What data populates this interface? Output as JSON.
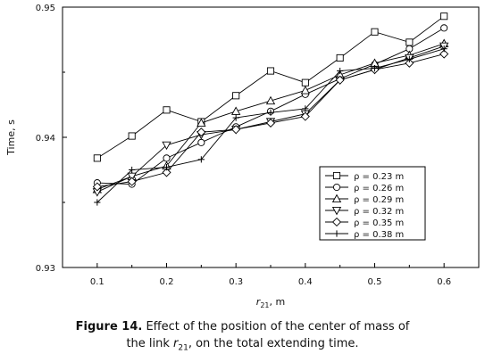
{
  "chart_data": {
    "type": "line",
    "ylabel": "Time, s",
    "xlabel": {
      "main": "r",
      "sub": "21",
      "unit": ", m"
    },
    "xlim": [
      0.05,
      0.65
    ],
    "ylim": [
      0.93,
      0.95
    ],
    "x_ticks": [
      "0.1",
      "0.2",
      "0.3",
      "0.4",
      "0.5",
      "0.6"
    ],
    "y_ticks": [
      "0.93",
      "0.94",
      "0.95"
    ],
    "x": [
      0.1,
      0.15,
      0.2,
      0.25,
      0.3,
      0.35,
      0.4,
      0.45,
      0.5,
      0.55,
      0.6
    ],
    "series": [
      {
        "name": "ρ = 0.23 m",
        "marker": "square",
        "values": [
          0.9384,
          0.9401,
          0.9421,
          0.9412,
          0.9432,
          0.9451,
          0.9442,
          0.9461,
          0.9481,
          0.9473,
          0.9493
        ]
      },
      {
        "name": "ρ = 0.26 m",
        "marker": "circle",
        "values": [
          0.9365,
          0.9364,
          0.9384,
          0.9396,
          0.9408,
          0.942,
          0.9433,
          0.9445,
          0.9456,
          0.9468,
          0.9484
        ]
      },
      {
        "name": "ρ = 0.29 m",
        "marker": "triangle-up",
        "values": [
          0.936,
          0.937,
          0.9378,
          0.9411,
          0.942,
          0.9428,
          0.9436,
          0.9448,
          0.9457,
          0.9463,
          0.9472
        ]
      },
      {
        "name": "ρ = 0.32 m",
        "marker": "triangle-down",
        "values": [
          0.9358,
          0.937,
          0.9394,
          0.9402,
          0.9406,
          0.9412,
          0.9418,
          0.9444,
          0.9452,
          0.9461,
          0.947
        ]
      },
      {
        "name": "ρ = 0.35 m",
        "marker": "diamond",
        "values": [
          0.9362,
          0.9366,
          0.9373,
          0.9404,
          0.9406,
          0.9411,
          0.9416,
          0.9444,
          0.9452,
          0.9457,
          0.9464
        ]
      },
      {
        "name": "ρ = 0.38 m",
        "marker": "plus",
        "values": [
          0.935,
          0.9375,
          0.9377,
          0.9383,
          0.9415,
          0.9419,
          0.9422,
          0.9451,
          0.9453,
          0.946,
          0.9468
        ]
      }
    ],
    "grid": false,
    "legend_position": "bottom-right"
  },
  "caption": {
    "label": "Figure 14.",
    "line1": " Effect of the position of the center of mass of",
    "line2_pre": "the link ",
    "line2_var": "r",
    "line2_sub": "21",
    "line2_post": ", on the total extending time."
  }
}
